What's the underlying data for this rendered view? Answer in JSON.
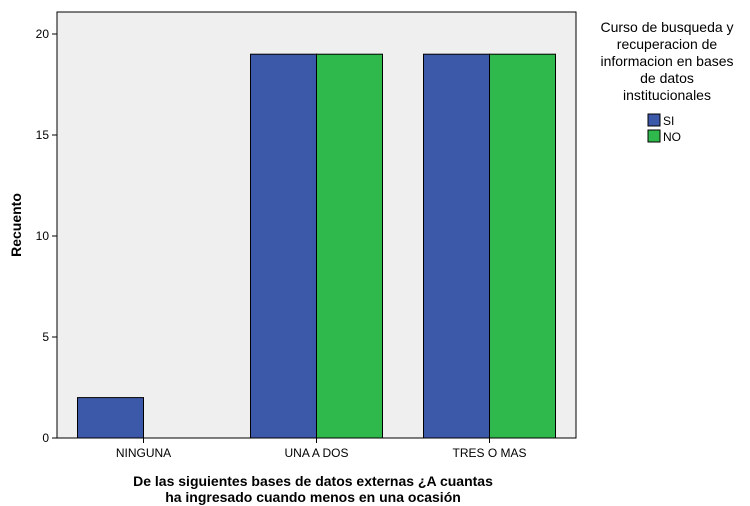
{
  "chart_data": {
    "type": "bar",
    "categories": [
      "NINGUNA",
      "UNA A DOS",
      "TRES O MAS"
    ],
    "series": [
      {
        "name": "SI",
        "values": [
          2,
          19,
          19
        ],
        "color": "#3c58a8"
      },
      {
        "name": "NO",
        "values": [
          0,
          19,
          19
        ],
        "color": "#2fb84b"
      }
    ],
    "ylabel": "Recuento",
    "xlabel_lines": [
      "De las siguientes bases de datos externas ¿A cuantas",
      "ha ingresado cuando menos en una ocasión"
    ],
    "ylim": [
      0,
      20
    ],
    "yticks": [
      0,
      5,
      10,
      15,
      20
    ],
    "legend": {
      "title_lines": [
        "Curso de busqueda y",
        "recuperacion de",
        "informacion en bases",
        "de datos",
        "institucionales"
      ],
      "position": "right"
    },
    "plot_background": "#efefef",
    "grid": false
  }
}
